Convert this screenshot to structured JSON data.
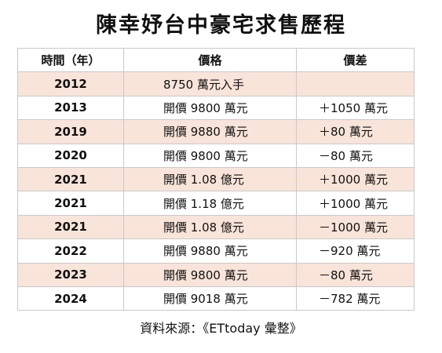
{
  "title": "陳幸妤台中豪宅求售歷程",
  "table": {
    "headers": {
      "year": "時間（年）",
      "price": "價格",
      "diff": "價差"
    },
    "rows": [
      {
        "year": "2012",
        "price": "8750 萬元入手",
        "diff": ""
      },
      {
        "year": "2013",
        "price": "開價 9800 萬元",
        "diff": "＋1050 萬元"
      },
      {
        "year": "2019",
        "price": "開價 9880 萬元",
        "diff": "＋80 萬元"
      },
      {
        "year": "2020",
        "price": "開價 9800 萬元",
        "diff": "－80 萬元"
      },
      {
        "year": "2021",
        "price": "開價 1.08 億元",
        "diff": "＋1000 萬元"
      },
      {
        "year": "2021",
        "price": "開價 1.18 億元",
        "diff": "＋1000 萬元"
      },
      {
        "year": "2021",
        "price": "開價 1.08 億元",
        "diff": "－1000 萬元"
      },
      {
        "year": "2022",
        "price": "開價 9880 萬元",
        "diff": "－920 萬元"
      },
      {
        "year": "2023",
        "price": "開價 9800 萬元",
        "diff": "－80 萬元"
      },
      {
        "year": "2024",
        "price": "開價 9018 萬元",
        "diff": "－782 萬元"
      }
    ]
  },
  "source": "資料來源：《ETtoday 彙整》",
  "colors": {
    "row_shade": "#f8e4d9",
    "border": "#c9c9c9"
  }
}
